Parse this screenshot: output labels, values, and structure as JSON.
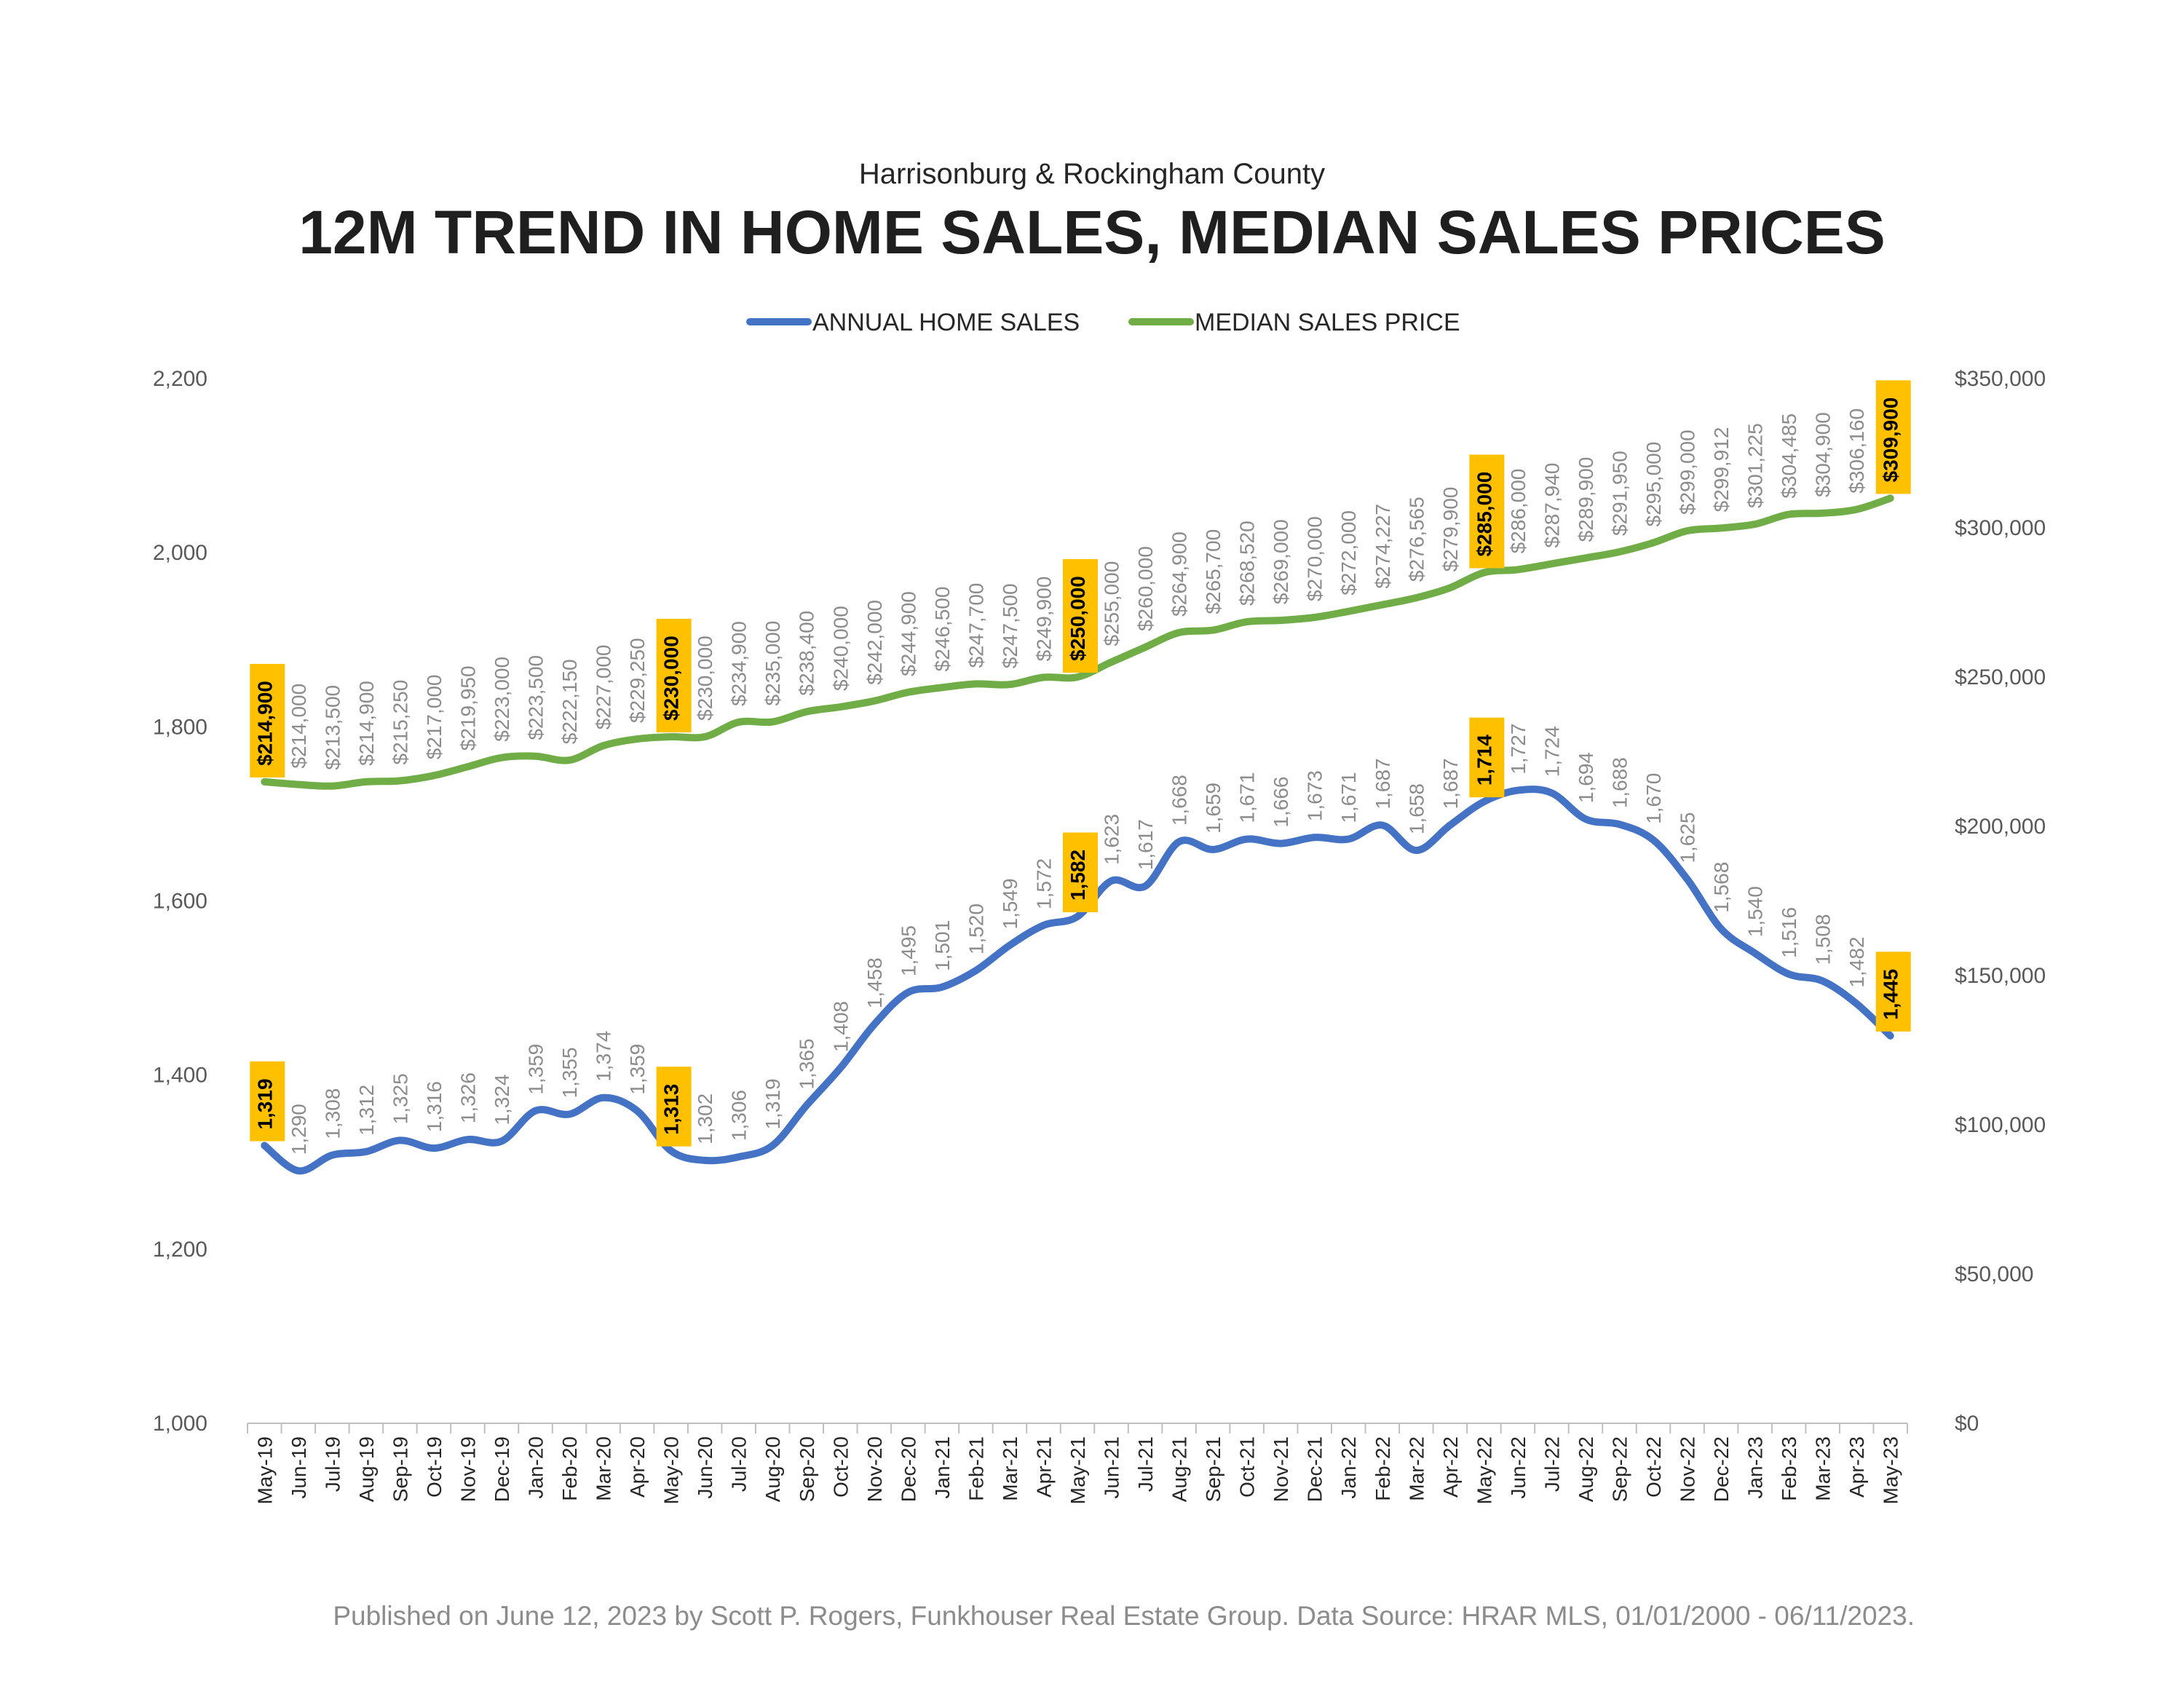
{
  "subtitle": "Harrisonburg & Rockingham County",
  "title": "12M TREND IN HOME SALES, MEDIAN SALES PRICES",
  "footer": "Published on June 12, 2023 by Scott P. Rogers, Funkhouser Real Estate Group. Data Source: HRAR MLS, 01/01/2000 - 06/11/2023.",
  "colors": {
    "sales": "#4472C4",
    "price": "#70AD47",
    "highlight": "#FFC000"
  },
  "chart_data": {
    "type": "line",
    "categories": [
      "May-19",
      "Jun-19",
      "Jul-19",
      "Aug-19",
      "Sep-19",
      "Oct-19",
      "Nov-19",
      "Dec-19",
      "Jan-20",
      "Feb-20",
      "Mar-20",
      "Apr-20",
      "May-20",
      "Jun-20",
      "Jul-20",
      "Aug-20",
      "Sep-20",
      "Oct-20",
      "Nov-20",
      "Dec-20",
      "Jan-21",
      "Feb-21",
      "Mar-21",
      "Apr-21",
      "May-21",
      "Jun-21",
      "Jul-21",
      "Aug-21",
      "Sep-21",
      "Oct-21",
      "Nov-21",
      "Dec-21",
      "Jan-22",
      "Feb-22",
      "Mar-22",
      "Apr-22",
      "May-22",
      "Jun-22",
      "Jul-22",
      "Aug-22",
      "Sep-22",
      "Oct-22",
      "Nov-22",
      "Dec-22",
      "Jan-23",
      "Feb-23",
      "Mar-23",
      "Apr-23",
      "May-23"
    ],
    "series": [
      {
        "name": "ANNUAL HOME SALES",
        "axis": "left",
        "values": [
          1319,
          1290,
          1308,
          1312,
          1325,
          1316,
          1326,
          1324,
          1359,
          1355,
          1374,
          1359,
          1313,
          1302,
          1306,
          1319,
          1365,
          1408,
          1458,
          1495,
          1501,
          1520,
          1549,
          1572,
          1582,
          1623,
          1617,
          1668,
          1659,
          1671,
          1666,
          1673,
          1671,
          1687,
          1658,
          1687,
          1714,
          1727,
          1724,
          1694,
          1688,
          1670,
          1625,
          1568,
          1540,
          1516,
          1508,
          1482,
          1445
        ],
        "labels": [
          "1,319",
          "1,290",
          "1,308",
          "1,312",
          "1,325",
          "1,316",
          "1,326",
          "1,324",
          "1,359",
          "1,355",
          "1,374",
          "1,359",
          "1,313",
          "1,302",
          "1,306",
          "1,319",
          "1,365",
          "1,408",
          "1,458",
          "1,495",
          "1,501",
          "1,520",
          "1,549",
          "1,572",
          "1,582",
          "1,623",
          "1,617",
          "1,668",
          "1,659",
          "1,671",
          "1,666",
          "1,673",
          "1,671",
          "1,687",
          "1,658",
          "1,687",
          "1,714",
          "1,727",
          "1,724",
          "1,694",
          "1,688",
          "1,670",
          "1,625",
          "1,568",
          "1,540",
          "1,516",
          "1,508",
          "1,482",
          "1,445"
        ],
        "highlighted": [
          0,
          12,
          24,
          36,
          48
        ]
      },
      {
        "name": "MEDIAN SALES PRICE",
        "axis": "right",
        "values": [
          214900,
          214000,
          213500,
          214900,
          215250,
          217000,
          219950,
          223000,
          223500,
          222150,
          227000,
          229250,
          230000,
          230000,
          234900,
          235000,
          238400,
          240000,
          242000,
          244900,
          246500,
          247700,
          247500,
          249900,
          250000,
          255000,
          260000,
          264900,
          265700,
          268520,
          269000,
          270000,
          272000,
          274227,
          276565,
          279900,
          285000,
          286000,
          287940,
          289900,
          291950,
          295000,
          299000,
          299912,
          301225,
          304485,
          304900,
          306160,
          309900
        ],
        "labels": [
          "$214,900",
          "$214,000",
          "$213,500",
          "$214,900",
          "$215,250",
          "$217,000",
          "$219,950",
          "$223,000",
          "$223,500",
          "$222,150",
          "$227,000",
          "$229,250",
          "$230,000",
          "$230,000",
          "$234,900",
          "$235,000",
          "$238,400",
          "$240,000",
          "$242,000",
          "$244,900",
          "$246,500",
          "$247,700",
          "$247,500",
          "$249,900",
          "$250,000",
          "$255,000",
          "$260,000",
          "$264,900",
          "$265,700",
          "$268,520",
          "$269,000",
          "$270,000",
          "$272,000",
          "$274,227",
          "$276,565",
          "$279,900",
          "$285,000",
          "$286,000",
          "$287,940",
          "$289,900",
          "$291,950",
          "$295,000",
          "$299,000",
          "$299,912",
          "$301,225",
          "$304,485",
          "$304,900",
          "$306,160",
          "$309,900"
        ],
        "highlighted": [
          0,
          12,
          24,
          36,
          48
        ]
      }
    ],
    "y_left": {
      "min": 1000,
      "max": 2200,
      "ticks": [
        "1,000",
        "1,200",
        "1,400",
        "1,600",
        "1,800",
        "2,000",
        "2,200"
      ]
    },
    "y_right": {
      "min": 0,
      "max": 350000,
      "ticks": [
        "$0",
        "$50,000",
        "$100,000",
        "$150,000",
        "$200,000",
        "$250,000",
        "$300,000",
        "$350,000"
      ]
    },
    "grid": false,
    "legend_position": "top-center"
  }
}
